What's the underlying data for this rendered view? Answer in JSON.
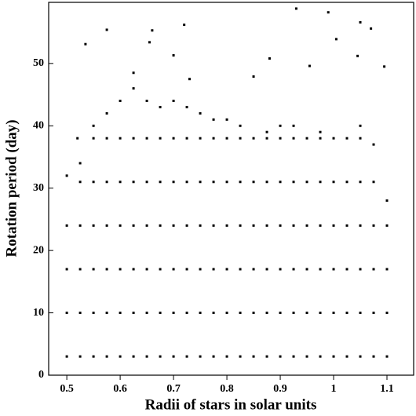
{
  "chart_data": {
    "type": "scatter",
    "x_label": "Radii of stars in solar units",
    "y_label": "Rotation period (day)",
    "color": "#000000",
    "xlim": [
      0.466,
      1.15
    ],
    "ylim": [
      0,
      59.8
    ],
    "xticks": [
      0.5,
      0.6,
      0.7,
      0.8,
      0.9,
      1,
      1.1
    ],
    "yticks": [
      0,
      10,
      20,
      30,
      40,
      50
    ],
    "x": [
      0.5,
      0.5,
      0.5,
      0.5,
      0.525,
      0.525,
      0.525,
      0.525,
      0.525,
      0.525,
      0.55,
      0.55,
      0.55,
      0.55,
      0.55,
      0.55,
      0.55,
      0.575,
      0.575,
      0.575,
      0.575,
      0.575,
      0.575,
      0.575,
      0.6,
      0.6,
      0.6,
      0.6,
      0.6,
      0.6,
      0.6,
      0.625,
      0.625,
      0.625,
      0.625,
      0.625,
      0.625,
      0.625,
      0.65,
      0.65,
      0.65,
      0.65,
      0.65,
      0.65,
      0.65,
      0.675,
      0.675,
      0.675,
      0.675,
      0.675,
      0.675,
      0.675,
      0.7,
      0.7,
      0.7,
      0.7,
      0.7,
      0.7,
      0.7,
      0.725,
      0.725,
      0.725,
      0.725,
      0.725,
      0.725,
      0.725,
      0.75,
      0.75,
      0.75,
      0.75,
      0.75,
      0.75,
      0.75,
      0.775,
      0.775,
      0.775,
      0.775,
      0.775,
      0.775,
      0.775,
      0.8,
      0.8,
      0.8,
      0.8,
      0.8,
      0.8,
      0.8,
      0.825,
      0.825,
      0.825,
      0.825,
      0.825,
      0.825,
      0.825,
      0.85,
      0.85,
      0.85,
      0.85,
      0.85,
      0.85,
      0.875,
      0.875,
      0.875,
      0.875,
      0.875,
      0.875,
      0.875,
      0.9,
      0.9,
      0.9,
      0.9,
      0.9,
      0.9,
      0.9,
      0.925,
      0.925,
      0.925,
      0.925,
      0.925,
      0.925,
      0.925,
      0.95,
      0.95,
      0.95,
      0.95,
      0.95,
      0.95,
      0.975,
      0.975,
      0.975,
      0.975,
      0.975,
      0.975,
      0.975,
      1.0,
      1.0,
      1.0,
      1.0,
      1.0,
      1.0,
      1.025,
      1.025,
      1.025,
      1.025,
      1.025,
      1.025,
      1.05,
      1.05,
      1.05,
      1.05,
      1.05,
      1.05,
      1.05,
      1.075,
      1.075,
      1.075,
      1.075,
      1.075,
      1.075,
      1.1,
      1.1,
      1.1,
      1.1,
      1.1,
      0.93,
      0.99,
      1.05,
      1.07,
      0.575,
      0.66,
      0.72,
      0.655,
      0.535,
      1.005,
      1.045,
      1.095,
      0.88,
      0.7,
      0.955,
      0.85,
      0.625,
      0.73,
      0.52,
      0.5
    ],
    "values": [
      3,
      10,
      17,
      24,
      3,
      10,
      17,
      24,
      31,
      34,
      3,
      10,
      17,
      24,
      31,
      38,
      40,
      3,
      10,
      17,
      24,
      31,
      38,
      42,
      3,
      10,
      17,
      24,
      31,
      38,
      44,
      3,
      10,
      17,
      24,
      31,
      38,
      46,
      3,
      10,
      17,
      24,
      31,
      38,
      44,
      3,
      10,
      17,
      24,
      31,
      38,
      43,
      3,
      10,
      17,
      24,
      31,
      38,
      44,
      3,
      10,
      17,
      24,
      31,
      38,
      43,
      3,
      10,
      17,
      24,
      31,
      38,
      42,
      3,
      10,
      17,
      24,
      31,
      38,
      41,
      3,
      10,
      17,
      24,
      31,
      38,
      41,
      3,
      10,
      17,
      24,
      31,
      38,
      40,
      3,
      10,
      17,
      24,
      31,
      38,
      3,
      10,
      17,
      24,
      31,
      38,
      39,
      3,
      10,
      17,
      24,
      31,
      38,
      40,
      3,
      10,
      17,
      24,
      31,
      38,
      40,
      3,
      10,
      17,
      24,
      31,
      38,
      3,
      10,
      17,
      24,
      31,
      38,
      39,
      3,
      10,
      17,
      24,
      31,
      38,
      3,
      10,
      17,
      24,
      31,
      38,
      3,
      10,
      17,
      24,
      31,
      38,
      40,
      3,
      10,
      17,
      24,
      31,
      37,
      3,
      10,
      17,
      24,
      28,
      58.8,
      58.2,
      56.6,
      55.6,
      55.4,
      55.3,
      56.2,
      53.4,
      53.1,
      53.9,
      51.2,
      49.5,
      50.8,
      51.3,
      49.6,
      47.9,
      48.5,
      47.5,
      38,
      32
    ]
  }
}
